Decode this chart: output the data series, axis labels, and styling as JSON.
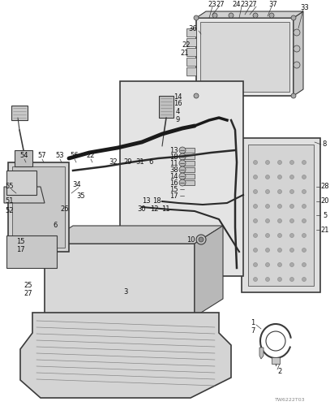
{
  "bg_color": "#ffffff",
  "fig_width": 4.07,
  "fig_height": 5.0,
  "dpi": 100,
  "watermark": "TW6222T03",
  "image_b64": ""
}
